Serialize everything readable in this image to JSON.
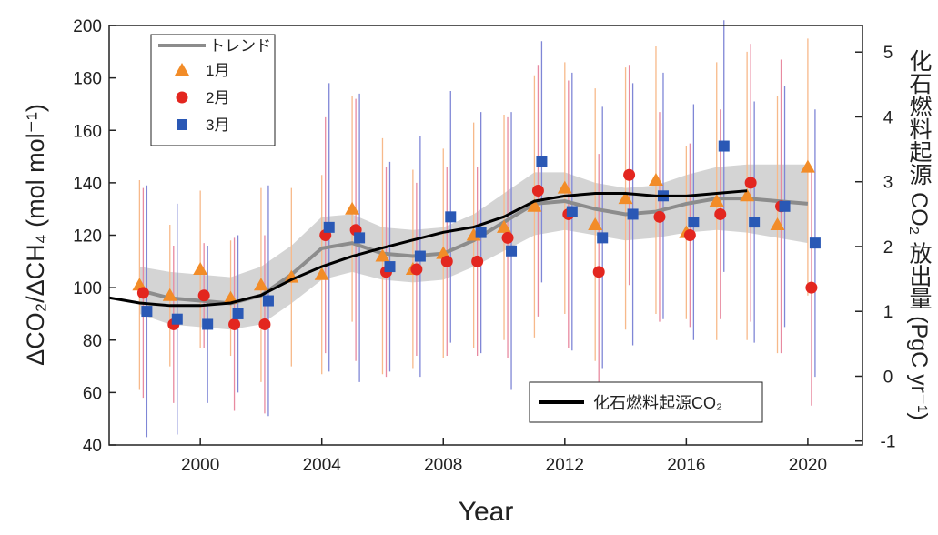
{
  "chart_data": {
    "type": "scatter",
    "xlabel": "Year",
    "ylabel": "ΔCO₂/ΔCH₄ (mol mol⁻¹)",
    "y2label": "化石燃料起源 CO₂ 放出量 (PgC yr⁻¹)",
    "xlim": [
      1997,
      2021.8
    ],
    "xticks": [
      2000,
      2004,
      2008,
      2012,
      2016,
      2020
    ],
    "ylim": [
      40,
      200
    ],
    "yticks": [
      40,
      60,
      80,
      100,
      120,
      140,
      160,
      180,
      200
    ],
    "y2lim": [
      -1.06,
      5.41
    ],
    "y2ticks": [
      -1,
      0,
      1,
      2,
      3,
      4,
      5
    ],
    "series": [
      {
        "name": "トレンド",
        "type": "line",
        "color": "#8c8c8c",
        "band_color": "#d4d4d4",
        "x": [
          1998,
          1999,
          2000,
          2001,
          2002,
          2003,
          2004,
          2005,
          2006,
          2007,
          2008,
          2009,
          2010,
          2011,
          2012,
          2013,
          2014,
          2015,
          2016,
          2017,
          2018,
          2019,
          2020
        ],
        "values": [
          99,
          96,
          95,
          94,
          97,
          105,
          115,
          117,
          113,
          112,
          113,
          118,
          125,
          132,
          133,
          130,
          128,
          129,
          132,
          134,
          134,
          133,
          132
        ],
        "lower": [
          90,
          86,
          85,
          84,
          86,
          94,
          103,
          106,
          103,
          102,
          103,
          108,
          114,
          120,
          122,
          120,
          118,
          119,
          121,
          122,
          121,
          119,
          117
        ],
        "upper": [
          108,
          106,
          105,
          104,
          108,
          116,
          127,
          128,
          123,
          122,
          123,
          128,
          136,
          144,
          144,
          140,
          138,
          139,
          143,
          146,
          147,
          147,
          147
        ]
      },
      {
        "name": "1月",
        "type": "scatter",
        "marker": "triangle",
        "color": "#f28c28",
        "error_color": "#f7b98a",
        "x": [
          1998,
          1999,
          2000,
          2001,
          2002,
          2003,
          2004,
          2005,
          2006,
          2007,
          2008,
          2009,
          2010,
          2011,
          2012,
          2013,
          2014,
          2015,
          2016,
          2017,
          2018,
          2019,
          2020
        ],
        "values": [
          101,
          97,
          107,
          96,
          101,
          104,
          105,
          130,
          112,
          107,
          113,
          120,
          123,
          131,
          138,
          124,
          134,
          141,
          121,
          133,
          135,
          124,
          146
        ],
        "errors": [
          40,
          27,
          30,
          22,
          37,
          34,
          38,
          43,
          45,
          38,
          40,
          43,
          43,
          50,
          48,
          52,
          50,
          51,
          33,
          53,
          55,
          49,
          49
        ]
      },
      {
        "name": "2月",
        "type": "scatter",
        "marker": "circle",
        "color": "#e3261f",
        "error_color": "#e88aa0",
        "x": [
          1998.12,
          1999.12,
          2000.12,
          2001.12,
          2002.12,
          2004.12,
          2005.12,
          2006.12,
          2007.12,
          2008.12,
          2009.12,
          2010.12,
          2011.12,
          2012.12,
          2013.12,
          2014.12,
          2015.12,
          2016.12,
          2017.12,
          2018.12,
          2019.12,
          2020.12
        ],
        "values": [
          98,
          86,
          97,
          86,
          86,
          120,
          122,
          106,
          107,
          110,
          110,
          119,
          137,
          128,
          106,
          143,
          127,
          120,
          128,
          140,
          131,
          100
        ],
        "errors": [
          40,
          30,
          20,
          33,
          34,
          45,
          50,
          40,
          33,
          36,
          36,
          46,
          48,
          51,
          45,
          42,
          40,
          35,
          40,
          53,
          56,
          45
        ]
      },
      {
        "name": "3月",
        "type": "scatter",
        "marker": "square",
        "color": "#2a58b5",
        "error_color": "#7f86d6",
        "x": [
          1998.24,
          1999.24,
          2000.24,
          2001.24,
          2002.24,
          2004.24,
          2005.24,
          2006.24,
          2007.24,
          2008.24,
          2009.24,
          2010.24,
          2011.24,
          2012.24,
          2013.24,
          2014.24,
          2015.24,
          2016.24,
          2017.24,
          2018.24,
          2019.24,
          2020.24
        ],
        "values": [
          91,
          88,
          86,
          90,
          95,
          123,
          119,
          108,
          112,
          127,
          121,
          114,
          148,
          129,
          119,
          128,
          135,
          125,
          154,
          125,
          131,
          117
        ],
        "errors": [
          48,
          44,
          30,
          30,
          44,
          55,
          55,
          40,
          46,
          48,
          46,
          53,
          46,
          53,
          50,
          50,
          47,
          45,
          48,
          46,
          46,
          51
        ]
      },
      {
        "name": "化石燃料起源CO₂",
        "type": "line",
        "axis": "y2",
        "color": "#000000",
        "x": [
          1997,
          1998,
          1999,
          2000,
          2001,
          2002,
          2003,
          2004,
          2005,
          2006,
          2007,
          2008,
          2009,
          2010,
          2011,
          2012,
          2013,
          2014,
          2015,
          2016,
          2017,
          2018
        ],
        "values": [
          1.21,
          1.13,
          1.09,
          1.09,
          1.13,
          1.25,
          1.49,
          1.69,
          1.85,
          1.98,
          2.1,
          2.22,
          2.3,
          2.46,
          2.7,
          2.78,
          2.82,
          2.82,
          2.78,
          2.78,
          2.82,
          2.86
        ]
      }
    ]
  }
}
